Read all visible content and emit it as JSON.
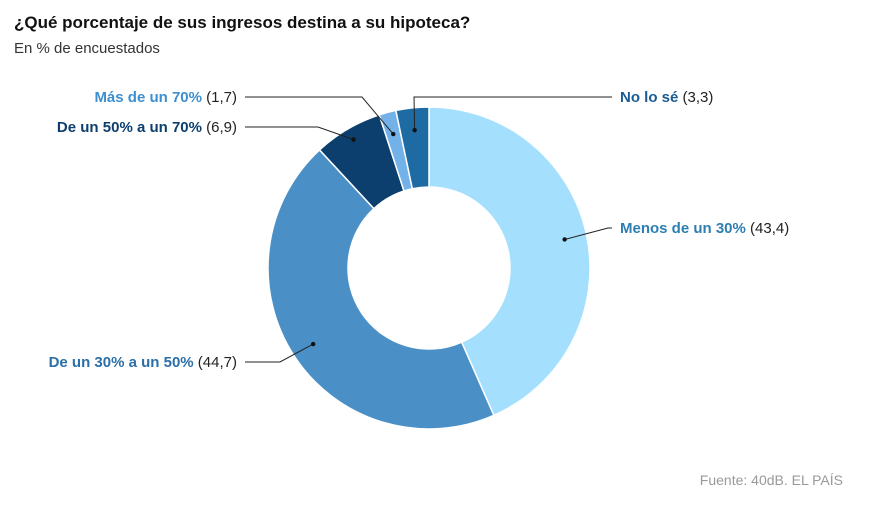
{
  "header": {
    "title": "¿Qué porcentaje de sus ingresos destina a su hipoteca?",
    "subtitle": "En % de encuestados"
  },
  "source": "Fuente: 40dB. EL PAÍS",
  "chart_data": {
    "type": "pie",
    "donut": true,
    "title": "¿Qué porcentaje de sus ingresos destina a su hipoteca?",
    "subtitle": "En % de encuestados",
    "slices": [
      {
        "name": "Menos de un 30%",
        "value": 43.4,
        "value_label": "(43,4)",
        "color": "#a4e0fd",
        "label_color": "#2e7fb1"
      },
      {
        "name": "De un 30% a un 50%",
        "value": 44.7,
        "value_label": "(44,7)",
        "color": "#4a90c7",
        "label_color": "#2a6fa8"
      },
      {
        "name": "De un 50% a un 70%",
        "value": 6.9,
        "value_label": "(6,9)",
        "color": "#0c3f6e",
        "label_color": "#0c3f6e"
      },
      {
        "name": "Más de un 70%",
        "value": 1.7,
        "value_label": "(1,7)",
        "color": "#72b2e9",
        "label_color": "#3e8fd0"
      },
      {
        "name": "No lo sé",
        "value": 3.3,
        "value_label": "(3,3)",
        "color": "#1e6aa3",
        "label_color": "#1a5c94"
      }
    ]
  }
}
